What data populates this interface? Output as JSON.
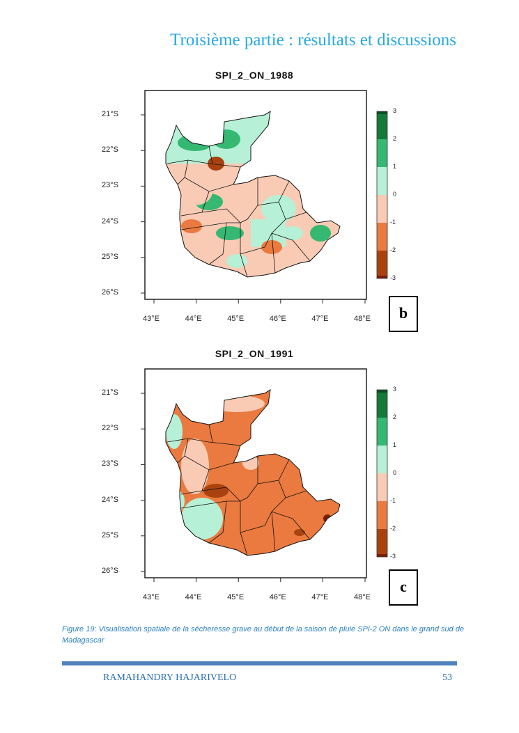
{
  "header": {
    "title": "Troisième partie : résultats et discussions"
  },
  "colors": {
    "header": "#27a9e1",
    "bins": [
      "#7a1f05",
      "#a9420f",
      "#ea7a3f",
      "#f9cbb5",
      "#b6f0d6",
      "#34b872",
      "#137a3a",
      "#0b4f24"
    ]
  },
  "figures": [
    {
      "title": "SPI_2_ON_1988",
      "panel_letter": "b",
      "lat_labels": [
        "21°S",
        "22°S",
        "23°S",
        "24°S",
        "25°S",
        "26°S"
      ],
      "lon_labels": [
        "43°E",
        "44°E",
        "45°E",
        "46°E",
        "47°E",
        "48°E"
      ],
      "colorbar_ticks": [
        "3",
        "2",
        "1",
        "0",
        "-1",
        "-2",
        "-3"
      ],
      "dominant_class": "mixed near-normal (0 to 1 and -1 to 0)"
    },
    {
      "title": "SPI_2_ON_1991",
      "panel_letter": "c",
      "lat_labels": [
        "21°S",
        "22°S",
        "23°S",
        "24°S",
        "25°S",
        "26°S"
      ],
      "lon_labels": [
        "43°E",
        "44°E",
        "45°E",
        "46°E",
        "47°E",
        "48°E"
      ],
      "colorbar_ticks": [
        "3",
        "2",
        "1",
        "0",
        "-1",
        "-2",
        "-3"
      ],
      "dominant_class": "moderate drought (-2 to -1)"
    }
  ],
  "caption": "Figure 19: Visualisation spatiale de la sécheresse grave au début de la saison de pluie SPI-2 ON dans le grand sud de Madagascar",
  "footer": {
    "author": "RAMAHANDRY HAJARIVELO",
    "page_number": "53"
  }
}
